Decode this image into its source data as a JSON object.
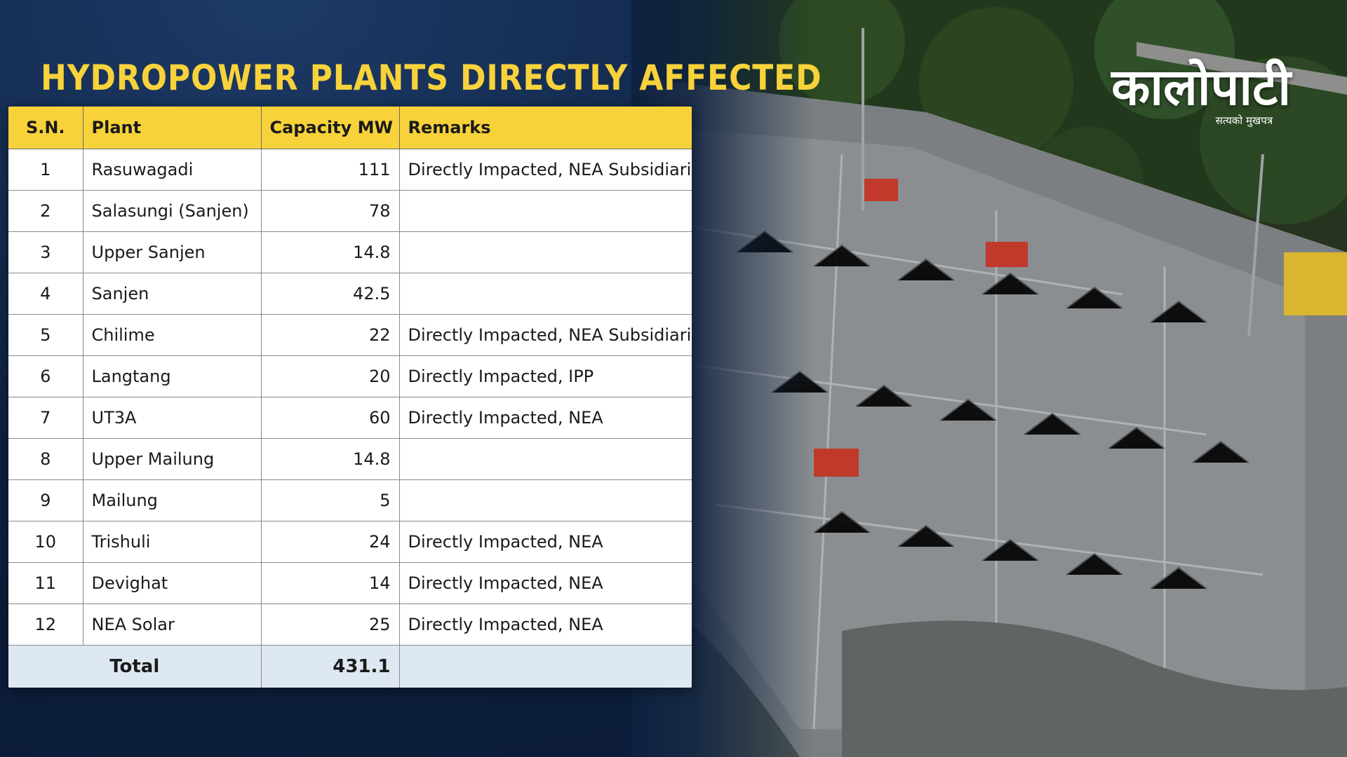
{
  "title": "HYDROPOWER PLANTS DIRECTLY AFFECTED",
  "table": {
    "headers": [
      "S.N.",
      "Plant",
      "Capacity MW",
      "Remarks"
    ],
    "rows": [
      {
        "sn": "1",
        "plant": "Rasuwagadi",
        "capacity": "111",
        "remarks": "Directly Impacted, NEA Subsidiaries"
      },
      {
        "sn": "2",
        "plant": "Salasungi (Sanjen)",
        "capacity": "78",
        "remarks": ""
      },
      {
        "sn": "3",
        "plant": "Upper Sanjen",
        "capacity": "14.8",
        "remarks": ""
      },
      {
        "sn": "4",
        "plant": "Sanjen",
        "capacity": "42.5",
        "remarks": ""
      },
      {
        "sn": "5",
        "plant": "Chilime",
        "capacity": "22",
        "remarks": "Directly Impacted, NEA Subsidiaries"
      },
      {
        "sn": "6",
        "plant": "Langtang",
        "capacity": "20",
        "remarks": "Directly Impacted, IPP"
      },
      {
        "sn": "7",
        "plant": "UT3A",
        "capacity": "60",
        "remarks": "Directly Impacted, NEA"
      },
      {
        "sn": "8",
        "plant": "Upper Mailung",
        "capacity": "14.8",
        "remarks": ""
      },
      {
        "sn": "9",
        "plant": "Mailung",
        "capacity": "5",
        "remarks": ""
      },
      {
        "sn": "10",
        "plant": "Trishuli",
        "capacity": "24",
        "remarks": "Directly Impacted, NEA"
      },
      {
        "sn": "11",
        "plant": "Devighat",
        "capacity": "14",
        "remarks": "Directly Impacted, NEA"
      },
      {
        "sn": "12",
        "plant": "NEA Solar",
        "capacity": "25",
        "remarks": "Directly Impacted, NEA"
      }
    ],
    "total_label": "Total",
    "total_value": "431.1"
  },
  "logo": {
    "name": "कालोपाटी",
    "tagline": "सत्यको मुखपत्र"
  },
  "colors": {
    "accent_yellow": "#f7d23a",
    "background_navy": "#0e2140",
    "total_row": "#dde8f3"
  }
}
